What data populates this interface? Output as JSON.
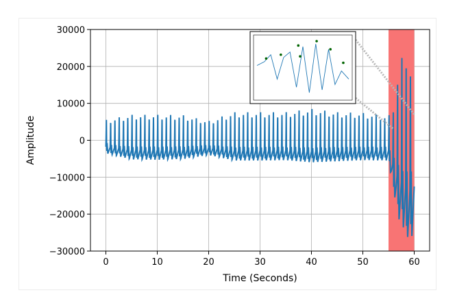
{
  "chart_data": {
    "type": "line",
    "title": "",
    "xlabel": "Time (Seconds)",
    "ylabel": "Amplitude",
    "xlim": [
      -3,
      63
    ],
    "ylim": [
      -30000,
      30000
    ],
    "x_ticks": [
      0,
      10,
      20,
      30,
      40,
      50,
      60
    ],
    "y_ticks": [
      -30000,
      -20000,
      -10000,
      0,
      10000,
      20000,
      30000
    ],
    "x_tick_labels": [
      "0",
      "10",
      "20",
      "30",
      "40",
      "50",
      "60"
    ],
    "y_tick_labels": [
      "−30000",
      "−20000",
      "−10000",
      "0",
      "10000",
      "20000",
      "30000"
    ],
    "grid": true,
    "series": [
      {
        "color": "#1f77b4",
        "description": "periodic oscillation",
        "x": [
          0,
          5,
          10,
          15,
          20,
          25,
          30,
          35,
          40,
          45,
          50,
          55,
          56,
          57,
          58,
          59,
          60
        ],
        "y_peak": [
          5500,
          6900,
          6900,
          6800,
          5200,
          7600,
          7600,
          7600,
          8500,
          7600,
          7400,
          6500,
          9500,
          19000,
          24500,
          23500,
          7000
        ],
        "y_trough": [
          -3500,
          -5200,
          -5300,
          -5100,
          -4000,
          -5500,
          -5500,
          -5400,
          -6000,
          -5700,
          -5400,
          -5500,
          -14000,
          -21500,
          -24000,
          -27500,
          -25000
        ]
      }
    ],
    "highlight_region": {
      "x": [
        55,
        60
      ],
      "color": "#f87474"
    },
    "inset": {
      "description": "zoomed view of highlighted region",
      "line_color": "#1f77b4",
      "marker_color": "#006400",
      "x": [
        0,
        0.08,
        0.15,
        0.22,
        0.29,
        0.36,
        0.43,
        0.5,
        0.57,
        0.64,
        0.71,
        0.78,
        0.85,
        0.92,
        1
      ],
      "y": [
        0.55,
        0.62,
        0.75,
        0.3,
        0.7,
        0.8,
        0.15,
        0.9,
        0.05,
        0.95,
        0.1,
        0.85,
        0.2,
        0.45,
        0.3
      ],
      "markers": [
        {
          "x": 0.1,
          "y": 0.68
        },
        {
          "x": 0.26,
          "y": 0.75
        },
        {
          "x": 0.45,
          "y": 0.92
        },
        {
          "x": 0.47,
          "y": 0.72
        },
        {
          "x": 0.65,
          "y": 1.0
        },
        {
          "x": 0.8,
          "y": 0.85
        },
        {
          "x": 0.94,
          "y": 0.6
        }
      ]
    }
  }
}
